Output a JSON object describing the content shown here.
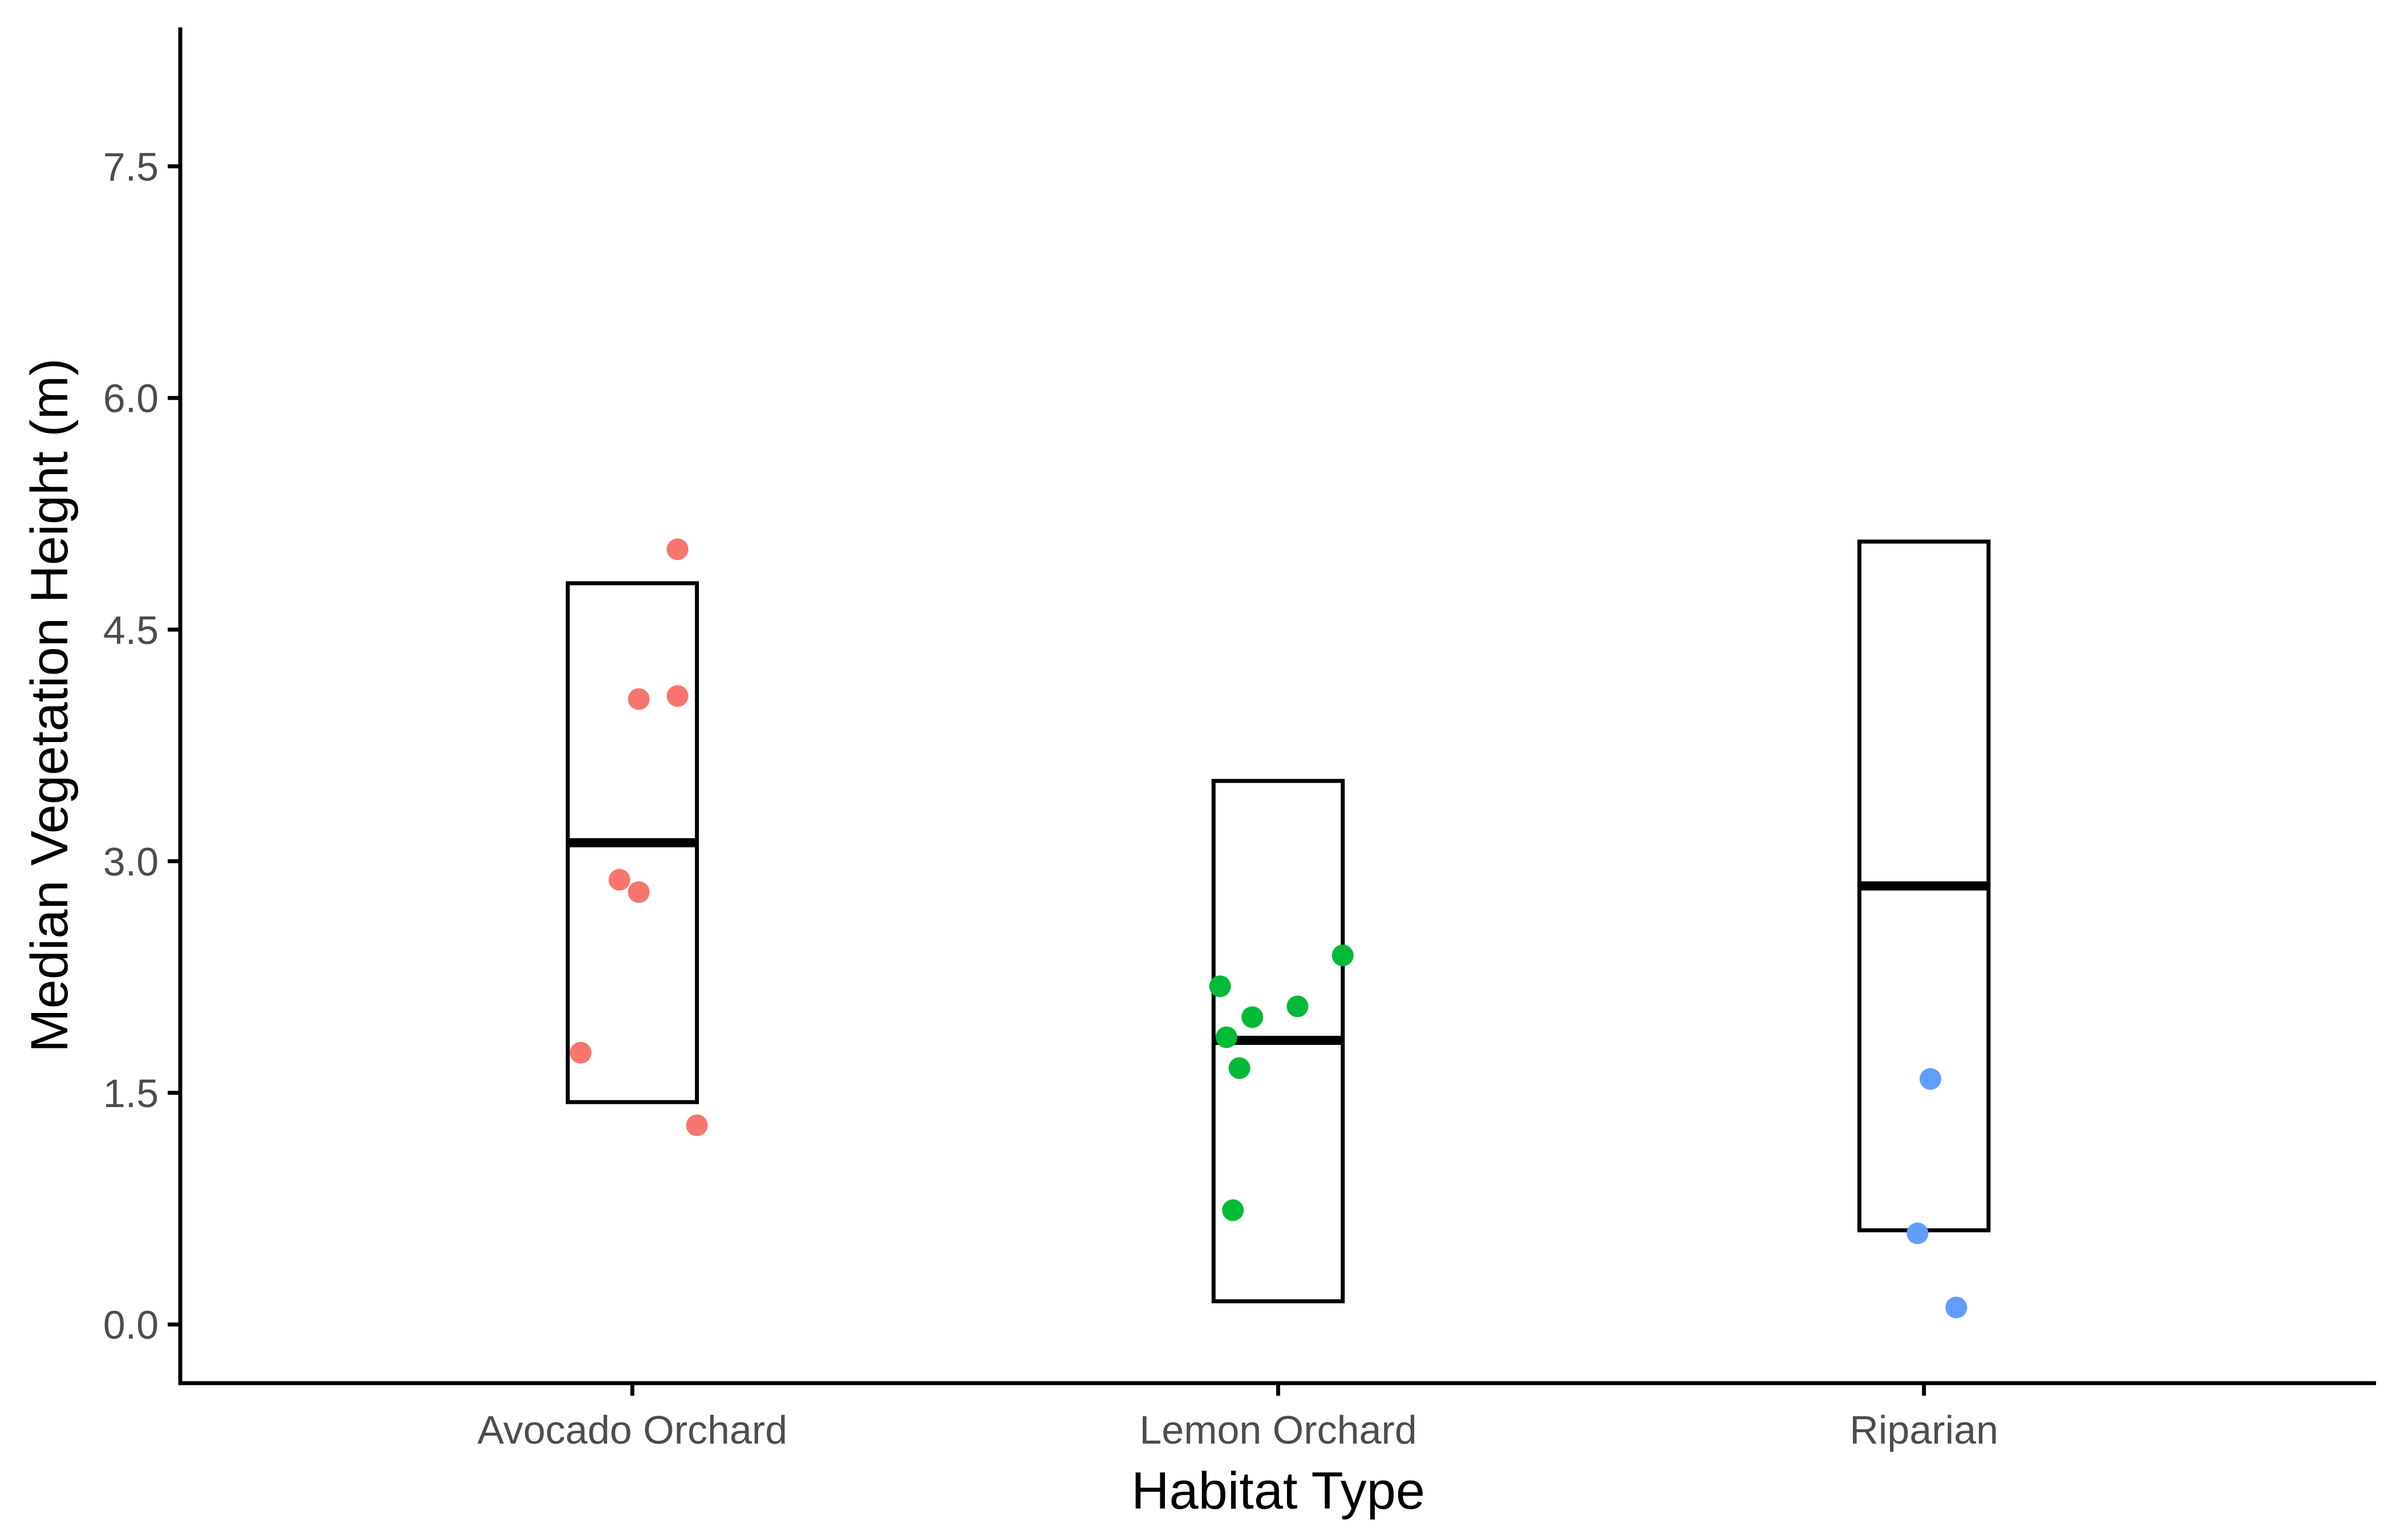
{
  "chart_data": {
    "type": "scatter",
    "xlabel": "Habitat Type",
    "ylabel": "Median Vegetation Height (m)",
    "ylim": [
      -0.38,
      8.4
    ],
    "yticks": [
      "0.0",
      "1.5",
      "3.0",
      "4.5",
      "6.0",
      "7.5"
    ],
    "ytick_values": [
      0,
      1.5,
      3.0,
      4.5,
      6.0,
      7.5
    ],
    "categories": [
      "Avocado Orchard",
      "Lemon Orchard",
      "Riparian"
    ],
    "grid": false,
    "legend": "none",
    "summary_boxes": [
      {
        "category": "Avocado Orchard",
        "low": 1.44,
        "mid": 3.12,
        "high": 4.8
      },
      {
        "category": "Lemon Orchard",
        "low": 0.15,
        "mid": 1.84,
        "high": 3.52
      },
      {
        "category": "Riparian",
        "low": 0.61,
        "mid": 2.84,
        "high": 5.07
      }
    ],
    "series": [
      {
        "category": "Avocado Orchard",
        "color": "#F8766D",
        "points": [
          {
            "jitter": -0.08,
            "y": 1.76
          },
          {
            "jitter": -0.02,
            "y": 2.88
          },
          {
            "jitter": 0.01,
            "y": 2.8
          },
          {
            "jitter": 0.01,
            "y": 4.05
          },
          {
            "jitter": 0.07,
            "y": 4.07
          },
          {
            "jitter": 0.07,
            "y": 5.02
          },
          {
            "jitter": 0.1,
            "y": 1.29
          }
        ]
      },
      {
        "category": "Lemon Orchard",
        "color": "#00BA38",
        "points": [
          {
            "jitter": -0.09,
            "y": 2.19
          },
          {
            "jitter": -0.08,
            "y": 1.86
          },
          {
            "jitter": -0.06,
            "y": 1.66
          },
          {
            "jitter": -0.07,
            "y": 0.74
          },
          {
            "jitter": -0.04,
            "y": 1.99
          },
          {
            "jitter": 0.03,
            "y": 2.06
          },
          {
            "jitter": 0.1,
            "y": 2.39
          }
        ]
      },
      {
        "category": "Riparian",
        "color": "#619CFF",
        "points": [
          {
            "jitter": 0.01,
            "y": 1.59
          },
          {
            "jitter": -0.01,
            "y": 0.59
          },
          {
            "jitter": 0.05,
            "y": 0.11
          }
        ]
      }
    ]
  }
}
